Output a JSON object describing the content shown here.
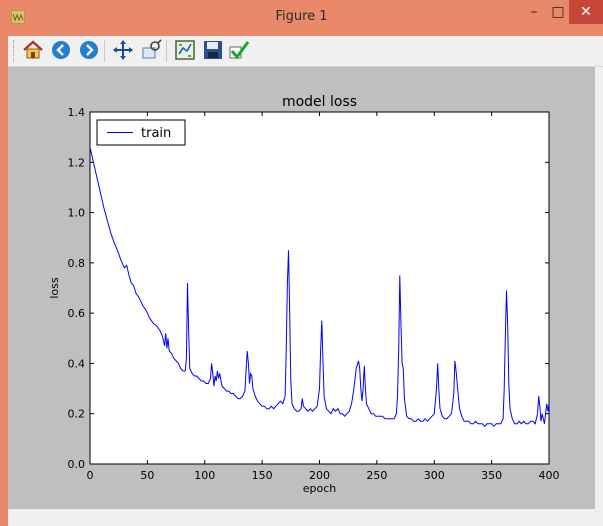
{
  "window": {
    "title": "Figure 1",
    "minimize_glyph": "–",
    "maximize_glyph": "□",
    "close_glyph": "✕"
  },
  "toolbar": {
    "buttons": [
      {
        "name": "home-button",
        "icon": "home-icon"
      },
      {
        "name": "back-button",
        "icon": "arrow-left-icon"
      },
      {
        "name": "forward-button",
        "icon": "arrow-right-icon"
      },
      {
        "name": "pan-button",
        "icon": "move-icon"
      },
      {
        "name": "zoom-button",
        "icon": "zoom-rect-icon"
      },
      {
        "name": "configure-subplots-button",
        "icon": "subplots-icon"
      },
      {
        "name": "save-button",
        "icon": "floppy-disk-icon"
      },
      {
        "name": "edit-parameters-button",
        "icon": "checkmark-icon"
      }
    ]
  },
  "chart_data": {
    "type": "line",
    "title": "model loss",
    "xlabel": "epoch",
    "ylabel": "loss",
    "xlim": [
      0,
      400
    ],
    "ylim": [
      0.0,
      1.4
    ],
    "xticks": [
      "0",
      "50",
      "100",
      "150",
      "200",
      "250",
      "300",
      "350",
      "400"
    ],
    "yticks": [
      "0.0",
      "0.2",
      "0.4",
      "0.6",
      "0.8",
      "1.0",
      "1.2",
      "1.4"
    ],
    "legend_position": "upper-left",
    "series": [
      {
        "name": "train",
        "color": "#0000ff",
        "points": [
          [
            0,
            1.26
          ],
          [
            2,
            1.22
          ],
          [
            4,
            1.18
          ],
          [
            6,
            1.14
          ],
          [
            8,
            1.1
          ],
          [
            10,
            1.06
          ],
          [
            12,
            1.02
          ],
          [
            15,
            0.97
          ],
          [
            18,
            0.92
          ],
          [
            21,
            0.88
          ],
          [
            24,
            0.85
          ],
          [
            27,
            0.81
          ],
          [
            30,
            0.78
          ],
          [
            32,
            0.79
          ],
          [
            34,
            0.75
          ],
          [
            36,
            0.72
          ],
          [
            38,
            0.71
          ],
          [
            40,
            0.68
          ],
          [
            43,
            0.66
          ],
          [
            46,
            0.63
          ],
          [
            49,
            0.61
          ],
          [
            52,
            0.58
          ],
          [
            55,
            0.56
          ],
          [
            58,
            0.55
          ],
          [
            61,
            0.53
          ],
          [
            63,
            0.51
          ],
          [
            65,
            0.47
          ],
          [
            66,
            0.52
          ],
          [
            67,
            0.46
          ],
          [
            68,
            0.5
          ],
          [
            69,
            0.45
          ],
          [
            71,
            0.44
          ],
          [
            73,
            0.42
          ],
          [
            75,
            0.41
          ],
          [
            77,
            0.4
          ],
          [
            79,
            0.38
          ],
          [
            81,
            0.37
          ],
          [
            83,
            0.37
          ],
          [
            84,
            0.42
          ],
          [
            85,
            0.72
          ],
          [
            86,
            0.52
          ],
          [
            87,
            0.38
          ],
          [
            89,
            0.36
          ],
          [
            91,
            0.35
          ],
          [
            93,
            0.35
          ],
          [
            95,
            0.34
          ],
          [
            97,
            0.33
          ],
          [
            99,
            0.33
          ],
          [
            101,
            0.32
          ],
          [
            103,
            0.32
          ],
          [
            105,
            0.34
          ],
          [
            106,
            0.4
          ],
          [
            107,
            0.36
          ],
          [
            108,
            0.31
          ],
          [
            109,
            0.35
          ],
          [
            110,
            0.33
          ],
          [
            111,
            0.37
          ],
          [
            112,
            0.34
          ],
          [
            113,
            0.36
          ],
          [
            115,
            0.31
          ],
          [
            117,
            0.3
          ],
          [
            119,
            0.29
          ],
          [
            121,
            0.29
          ],
          [
            123,
            0.28
          ],
          [
            125,
            0.28
          ],
          [
            127,
            0.27
          ],
          [
            129,
            0.26
          ],
          [
            131,
            0.26
          ],
          [
            133,
            0.27
          ],
          [
            135,
            0.29
          ],
          [
            137,
            0.45
          ],
          [
            138,
            0.4
          ],
          [
            139,
            0.32
          ],
          [
            140,
            0.36
          ],
          [
            141,
            0.35
          ],
          [
            142,
            0.3
          ],
          [
            144,
            0.27
          ],
          [
            146,
            0.25
          ],
          [
            148,
            0.24
          ],
          [
            150,
            0.23
          ],
          [
            152,
            0.23
          ],
          [
            154,
            0.22
          ],
          [
            156,
            0.22
          ],
          [
            158,
            0.23
          ],
          [
            160,
            0.22
          ],
          [
            162,
            0.23
          ],
          [
            164,
            0.24
          ],
          [
            166,
            0.25
          ],
          [
            168,
            0.24
          ],
          [
            170,
            0.27
          ],
          [
            171,
            0.45
          ],
          [
            172,
            0.72
          ],
          [
            173,
            0.85
          ],
          [
            174,
            0.6
          ],
          [
            175,
            0.33
          ],
          [
            176,
            0.24
          ],
          [
            178,
            0.22
          ],
          [
            180,
            0.21
          ],
          [
            182,
            0.21
          ],
          [
            184,
            0.22
          ],
          [
            185,
            0.26
          ],
          [
            186,
            0.23
          ],
          [
            188,
            0.22
          ],
          [
            190,
            0.21
          ],
          [
            192,
            0.22
          ],
          [
            194,
            0.21
          ],
          [
            196,
            0.22
          ],
          [
            198,
            0.23
          ],
          [
            200,
            0.3
          ],
          [
            201,
            0.45
          ],
          [
            202,
            0.57
          ],
          [
            203,
            0.42
          ],
          [
            204,
            0.27
          ],
          [
            206,
            0.22
          ],
          [
            208,
            0.21
          ],
          [
            210,
            0.2
          ],
          [
            212,
            0.22
          ],
          [
            214,
            0.21
          ],
          [
            216,
            0.22
          ],
          [
            218,
            0.2
          ],
          [
            220,
            0.2
          ],
          [
            222,
            0.19
          ],
          [
            224,
            0.2
          ],
          [
            226,
            0.21
          ],
          [
            228,
            0.24
          ],
          [
            230,
            0.3
          ],
          [
            232,
            0.38
          ],
          [
            234,
            0.41
          ],
          [
            235,
            0.38
          ],
          [
            236,
            0.3
          ],
          [
            237,
            0.25
          ],
          [
            238,
            0.3
          ],
          [
            239,
            0.39
          ],
          [
            240,
            0.3
          ],
          [
            241,
            0.24
          ],
          [
            243,
            0.22
          ],
          [
            245,
            0.2
          ],
          [
            247,
            0.2
          ],
          [
            249,
            0.19
          ],
          [
            251,
            0.19
          ],
          [
            253,
            0.19
          ],
          [
            255,
            0.19
          ],
          [
            257,
            0.18
          ],
          [
            259,
            0.18
          ],
          [
            261,
            0.18
          ],
          [
            263,
            0.18
          ],
          [
            265,
            0.18
          ],
          [
            267,
            0.2
          ],
          [
            268,
            0.27
          ],
          [
            269,
            0.45
          ],
          [
            270,
            0.75
          ],
          [
            271,
            0.55
          ],
          [
            272,
            0.4
          ],
          [
            273,
            0.38
          ],
          [
            274,
            0.26
          ],
          [
            276,
            0.19
          ],
          [
            278,
            0.18
          ],
          [
            280,
            0.18
          ],
          [
            282,
            0.17
          ],
          [
            284,
            0.17
          ],
          [
            286,
            0.18
          ],
          [
            288,
            0.17
          ],
          [
            290,
            0.17
          ],
          [
            292,
            0.18
          ],
          [
            294,
            0.17
          ],
          [
            296,
            0.18
          ],
          [
            298,
            0.19
          ],
          [
            300,
            0.2
          ],
          [
            302,
            0.3
          ],
          [
            303,
            0.4
          ],
          [
            304,
            0.3
          ],
          [
            305,
            0.22
          ],
          [
            307,
            0.19
          ],
          [
            309,
            0.18
          ],
          [
            311,
            0.18
          ],
          [
            313,
            0.19
          ],
          [
            315,
            0.2
          ],
          [
            317,
            0.28
          ],
          [
            318,
            0.41
          ],
          [
            319,
            0.37
          ],
          [
            320,
            0.32
          ],
          [
            321,
            0.27
          ],
          [
            322,
            0.22
          ],
          [
            324,
            0.19
          ],
          [
            326,
            0.17
          ],
          [
            328,
            0.17
          ],
          [
            330,
            0.17
          ],
          [
            332,
            0.16
          ],
          [
            334,
            0.16
          ],
          [
            336,
            0.17
          ],
          [
            338,
            0.16
          ],
          [
            340,
            0.16
          ],
          [
            342,
            0.16
          ],
          [
            344,
            0.15
          ],
          [
            346,
            0.16
          ],
          [
            348,
            0.16
          ],
          [
            350,
            0.16
          ],
          [
            352,
            0.15
          ],
          [
            354,
            0.16
          ],
          [
            356,
            0.16
          ],
          [
            358,
            0.16
          ],
          [
            360,
            0.18
          ],
          [
            361,
            0.3
          ],
          [
            362,
            0.52
          ],
          [
            363,
            0.69
          ],
          [
            364,
            0.55
          ],
          [
            365,
            0.32
          ],
          [
            366,
            0.22
          ],
          [
            368,
            0.18
          ],
          [
            370,
            0.16
          ],
          [
            372,
            0.16
          ],
          [
            374,
            0.17
          ],
          [
            376,
            0.16
          ],
          [
            378,
            0.17
          ],
          [
            380,
            0.16
          ],
          [
            382,
            0.16
          ],
          [
            384,
            0.17
          ],
          [
            386,
            0.17
          ],
          [
            388,
            0.16
          ],
          [
            390,
            0.2
          ],
          [
            391,
            0.27
          ],
          [
            392,
            0.23
          ],
          [
            393,
            0.17
          ],
          [
            394,
            0.2
          ],
          [
            395,
            0.18
          ],
          [
            396,
            0.16
          ],
          [
            397,
            0.2
          ],
          [
            398,
            0.24
          ],
          [
            399,
            0.21
          ],
          [
            400,
            0.24
          ]
        ]
      }
    ]
  }
}
